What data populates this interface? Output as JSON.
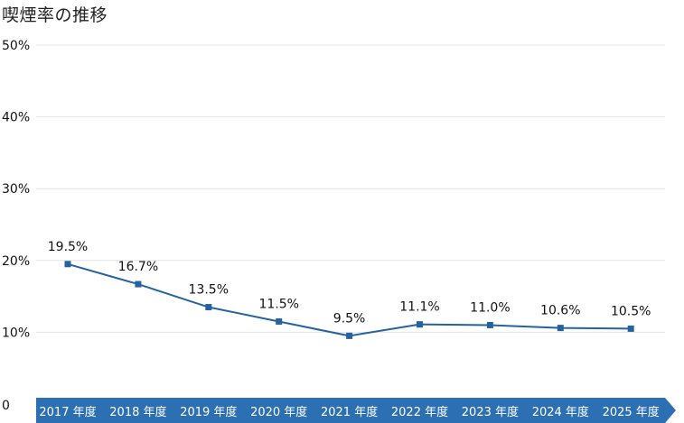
{
  "chart_data": {
    "type": "line",
    "title": "喫煙率の推移",
    "categories": [
      "2017 年度",
      "2018 年度",
      "2019 年度",
      "2020 年度",
      "2021 年度",
      "2022 年度",
      "2023 年度",
      "2024 年度",
      "2025 年度"
    ],
    "series": [
      {
        "values": [
          19.5,
          16.7,
          13.5,
          11.5,
          9.5,
          11.1,
          11.0,
          10.6,
          10.5
        ]
      }
    ],
    "data_labels": [
      "19.5%",
      "16.7%",
      "13.5%",
      "11.5%",
      "9.5%",
      "11.1%",
      "11.0%",
      "10.6%",
      "10.5%"
    ],
    "y_ticks": [
      0,
      10,
      20,
      30,
      40,
      50
    ],
    "y_tick_labels": [
      "0",
      "10%",
      "20%",
      "30%",
      "40%",
      "50%"
    ],
    "ylim": [
      0,
      50
    ],
    "grid": true,
    "colors": {
      "line": "#2463a0",
      "band": "#2d6fb3",
      "grid": "#e4e4e4"
    }
  }
}
